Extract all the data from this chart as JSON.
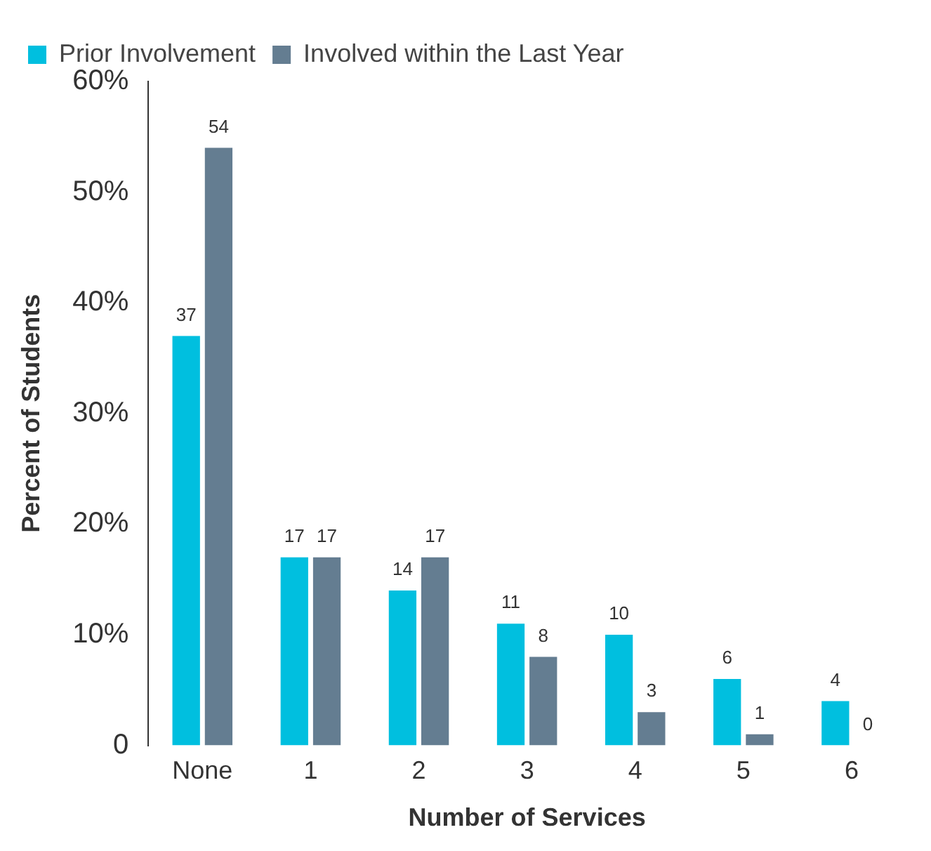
{
  "chart_data": {
    "type": "bar",
    "xlabel": "Number of Services",
    "ylabel": "Percent of Students",
    "categories": [
      "None",
      "1",
      "2",
      "3",
      "4",
      "5",
      "6"
    ],
    "series": [
      {
        "name": "Prior Involvement",
        "color": "#00bfdf",
        "values": [
          37,
          17,
          14,
          11,
          10,
          6,
          4
        ]
      },
      {
        "name": "Involved within the Last Year",
        "color": "#647d91",
        "values": [
          54,
          17,
          17,
          8,
          3,
          1,
          0
        ]
      }
    ],
    "ylim": [
      0,
      60
    ],
    "yticks": [
      0,
      {
        "value": 10,
        "label": "10%"
      },
      {
        "value": 20,
        "label": "20%"
      },
      {
        "value": 30,
        "label": "30%"
      },
      {
        "value": 40,
        "label": "40%"
      },
      {
        "value": 50,
        "label": "50%"
      },
      {
        "value": 60,
        "label": "60%"
      }
    ],
    "grid": false,
    "legend": "top left",
    "data_labels": true
  }
}
